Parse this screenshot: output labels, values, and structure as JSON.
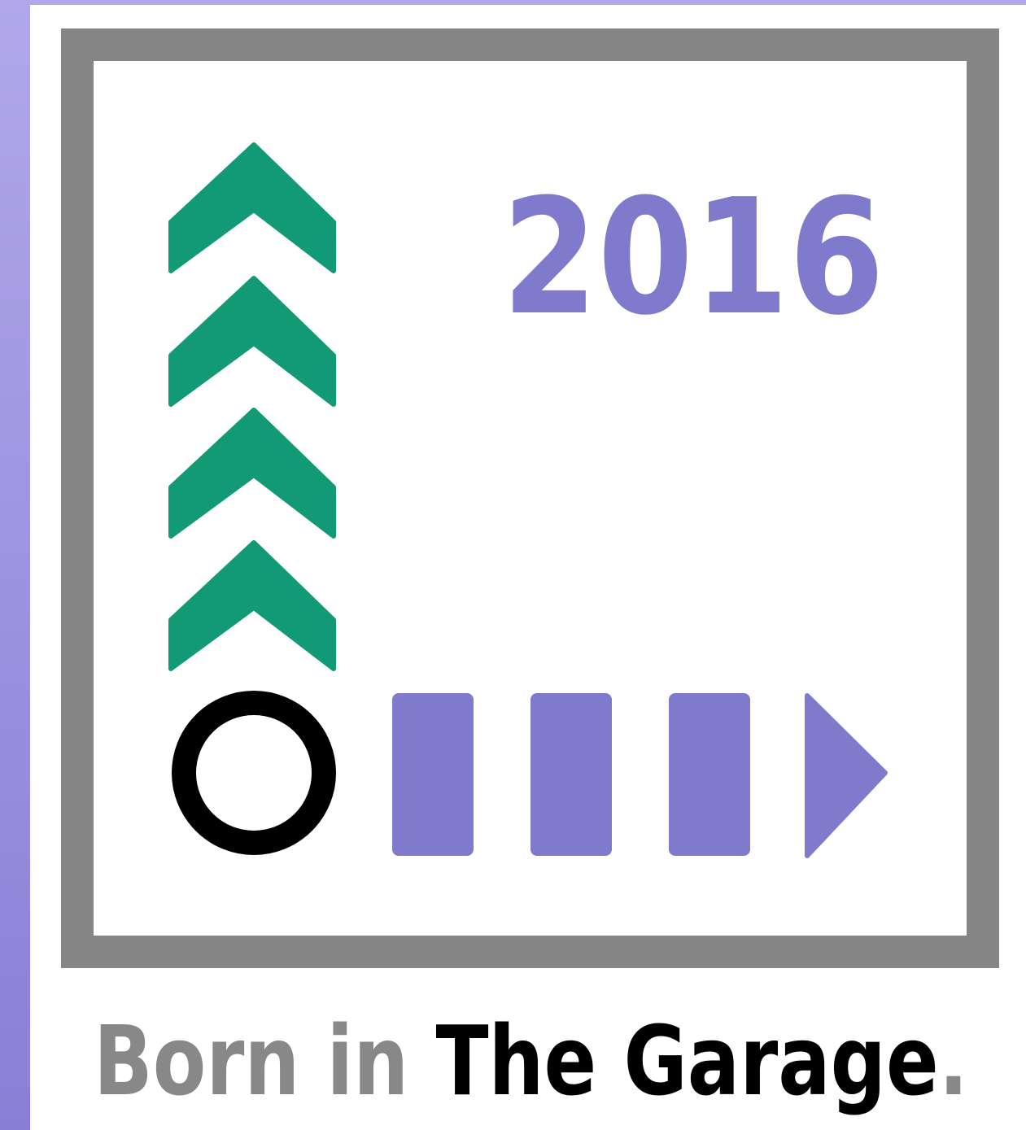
{
  "logo": {
    "year": "2016",
    "tagline": {
      "part1": "Born in ",
      "part2": "The Garage",
      "part3": "."
    }
  }
}
